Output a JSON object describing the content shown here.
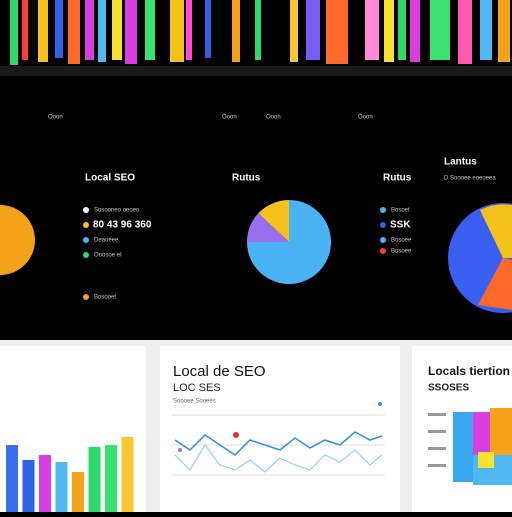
{
  "top": {
    "labels": [
      "Ooon",
      "Ooon",
      "Ooon",
      "Ooon"
    ]
  },
  "left_panel": {
    "title": "Local SEO",
    "legend": [
      "Sosooneo oeoeo",
      "80 43 96 360",
      "Deaoeee",
      "Ooosoe eI",
      "Bosooet"
    ]
  },
  "center_panel": {
    "title": "Rutus",
    "pie": {
      "values": [
        75,
        12,
        13
      ],
      "colors": [
        "#4ab3f4",
        "#9a6ff0",
        "#f5c21b"
      ]
    }
  },
  "right_legend": {
    "title": "Rutus",
    "items": [
      "Bosoet",
      "SSK",
      "Bosoee",
      "Bosoee"
    ]
  },
  "far_right": {
    "title": "Lantus",
    "subtitle": "D Soooee eoeoeea"
  },
  "bar_card": {
    "values": [
      67,
      52,
      57,
      50,
      40,
      65,
      67,
      75
    ],
    "colors": [
      "#3a6ff0",
      "#2f62e6",
      "#d83ee0",
      "#4fb8f0",
      "#f5a21b",
      "#2ed86a",
      "#3ae070",
      "#f8c630"
    ]
  },
  "line_card": {
    "title": "Local de SEO",
    "subtitle": "LOC SES",
    "caption": "Soooee Sooees"
  },
  "info_card": {
    "title": "Locals tiertion",
    "subtitle": "SSOSES"
  }
}
